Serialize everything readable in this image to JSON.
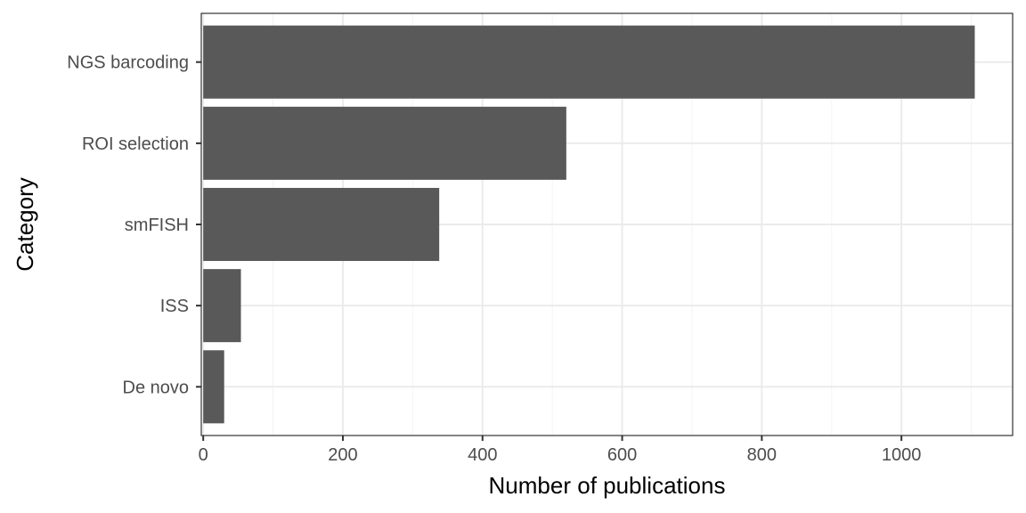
{
  "chart_data": {
    "type": "bar",
    "orientation": "horizontal",
    "categories": [
      "NGS barcoding",
      "ROI selection",
      "smFISH",
      "ISS",
      "De novo"
    ],
    "values": [
      1105,
      520,
      338,
      54,
      30
    ],
    "xlabel": "Number of publications",
    "ylabel": "Category",
    "xlim": [
      0,
      1150
    ],
    "x_ticks": [
      0,
      200,
      400,
      600,
      800,
      1000
    ],
    "x_tick_labels": [
      "0",
      "200",
      "400",
      "600",
      "800",
      "1000"
    ],
    "grid": true,
    "bar_color": "#595959",
    "grid_color": "#ebebeb"
  }
}
